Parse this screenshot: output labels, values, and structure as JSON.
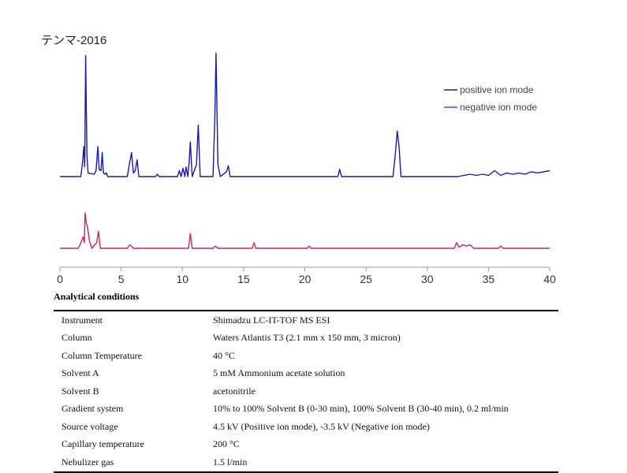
{
  "chart_data": {
    "type": "line",
    "title": "テンマ-2016",
    "xlabel": "",
    "ylabel": "",
    "xlim": [
      0,
      40
    ],
    "x_ticks": [
      0,
      5,
      10,
      15,
      20,
      25,
      30,
      35,
      40
    ],
    "grid": false,
    "legend_position": "top-right",
    "series": [
      {
        "name": "positive ion mode",
        "color": "#1a1aa8",
        "points": [
          [
            0.0,
            0
          ],
          [
            1.7,
            0
          ],
          [
            1.85,
            12
          ],
          [
            1.95,
            25
          ],
          [
            2.02,
            8
          ],
          [
            2.1,
            101
          ],
          [
            2.2,
            18
          ],
          [
            2.3,
            3
          ],
          [
            2.8,
            2
          ],
          [
            2.95,
            5
          ],
          [
            3.1,
            25
          ],
          [
            3.2,
            6
          ],
          [
            3.35,
            5
          ],
          [
            3.45,
            20
          ],
          [
            3.55,
            3
          ],
          [
            3.7,
            2
          ],
          [
            3.8,
            3
          ],
          [
            3.9,
            0
          ],
          [
            5.5,
            0
          ],
          [
            5.7,
            12
          ],
          [
            5.85,
            20
          ],
          [
            6.0,
            3
          ],
          [
            6.15,
            5
          ],
          [
            6.3,
            14
          ],
          [
            6.45,
            0
          ],
          [
            7.8,
            0
          ],
          [
            7.95,
            2
          ],
          [
            8.1,
            0
          ],
          [
            9.6,
            0
          ],
          [
            9.75,
            5
          ],
          [
            9.9,
            0
          ],
          [
            10.05,
            7
          ],
          [
            10.2,
            0
          ],
          [
            10.3,
            8
          ],
          [
            10.45,
            0
          ],
          [
            10.55,
            12
          ],
          [
            10.65,
            29
          ],
          [
            10.8,
            0
          ],
          [
            11.15,
            10
          ],
          [
            11.3,
            43
          ],
          [
            11.45,
            0
          ],
          [
            12.5,
            0
          ],
          [
            12.65,
            50
          ],
          [
            12.75,
            103
          ],
          [
            12.9,
            10
          ],
          [
            13.1,
            0
          ],
          [
            13.6,
            4
          ],
          [
            13.75,
            9
          ],
          [
            13.9,
            0
          ],
          [
            22.7,
            0
          ],
          [
            22.85,
            6
          ],
          [
            23.0,
            0
          ],
          [
            27.2,
            0
          ],
          [
            27.4,
            20
          ],
          [
            27.55,
            38
          ],
          [
            27.7,
            25
          ],
          [
            27.85,
            0
          ],
          [
            32.5,
            0
          ],
          [
            33.0,
            1
          ],
          [
            33.5,
            2
          ],
          [
            34.0,
            1
          ],
          [
            34.5,
            2
          ],
          [
            35.0,
            1
          ],
          [
            35.5,
            5
          ],
          [
            36.0,
            1
          ],
          [
            36.5,
            3
          ],
          [
            37.0,
            2
          ],
          [
            37.5,
            3
          ],
          [
            38.0,
            2
          ],
          [
            38.5,
            4
          ],
          [
            39.0,
            3
          ],
          [
            39.5,
            4
          ],
          [
            40.0,
            5
          ]
        ]
      },
      {
        "name": "negative ion mode",
        "color": "#cc2266",
        "points": [
          [
            0.0,
            0
          ],
          [
            1.5,
            0
          ],
          [
            1.75,
            6
          ],
          [
            1.9,
            10
          ],
          [
            2.0,
            5
          ],
          [
            2.05,
            31
          ],
          [
            2.15,
            22
          ],
          [
            2.25,
            19
          ],
          [
            2.4,
            7
          ],
          [
            2.6,
            0
          ],
          [
            3.0,
            5
          ],
          [
            3.15,
            15
          ],
          [
            3.3,
            0
          ],
          [
            5.5,
            0
          ],
          [
            5.7,
            3
          ],
          [
            5.85,
            2
          ],
          [
            6.0,
            0
          ],
          [
            10.5,
            0
          ],
          [
            10.65,
            13
          ],
          [
            10.8,
            0
          ],
          [
            12.5,
            0
          ],
          [
            12.7,
            2
          ],
          [
            12.9,
            0
          ],
          [
            15.7,
            0
          ],
          [
            15.85,
            5
          ],
          [
            16.0,
            0
          ],
          [
            20.2,
            0
          ],
          [
            20.35,
            2
          ],
          [
            20.5,
            0
          ],
          [
            32.2,
            0
          ],
          [
            32.4,
            5
          ],
          [
            32.6,
            1
          ],
          [
            32.9,
            3
          ],
          [
            33.2,
            2
          ],
          [
            33.5,
            3
          ],
          [
            33.8,
            0
          ],
          [
            35.8,
            0
          ],
          [
            36.0,
            2
          ],
          [
            36.2,
            0
          ],
          [
            40.0,
            0
          ]
        ]
      }
    ]
  },
  "conditions": {
    "heading": "Analytical conditions",
    "rows": [
      {
        "label": "Instrument",
        "value": "Shimadzu LC-IT-TOF MS ESI"
      },
      {
        "label": "Column",
        "value": "Waters Atlantis T3 (2.1 mm x 150 mm, 3 micron)"
      },
      {
        "label": "Column Temperature",
        "value": "40 °C"
      },
      {
        "label": "Solvent A",
        "value": "5 mM Ammonium acetate solution"
      },
      {
        "label": "Solvent B",
        "value": "acetonitrile"
      },
      {
        "label": "Gradient system",
        "value": "10% to 100% Solvent B (0-30 min), 100% Solvent B (30-40 min), 0.2 ml/min"
      },
      {
        "label": "Source voltage",
        "value": "4.5 kV (Positive ion mode), -3.5 kV (Negative ion mode)"
      },
      {
        "label": "Capillary temperature",
        "value": "200 °C"
      },
      {
        "label": "Nebulizer gas",
        "value": "1.5 l/min"
      }
    ]
  }
}
